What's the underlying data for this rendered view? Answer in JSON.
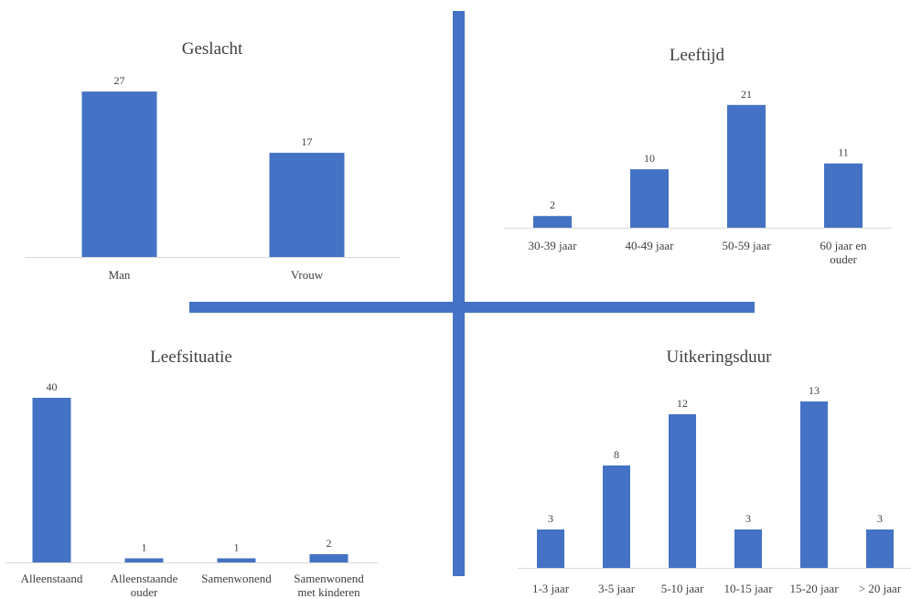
{
  "colors": {
    "bar": "#4472C4",
    "divider": "#4472C4",
    "baseline": "#d9d9d9",
    "text": "#404040"
  },
  "chart_data": [
    {
      "type": "bar",
      "title": "Geslacht",
      "categories": [
        "Man",
        "Vrouw"
      ],
      "values": [
        27,
        17
      ],
      "ylim": [
        0,
        30
      ],
      "grid": false,
      "legend": "none"
    },
    {
      "type": "bar",
      "title": "Leeftijd",
      "categories": [
        "30-39 jaar",
        "40-49 jaar",
        "50-59 jaar",
        "60 jaar en ouder"
      ],
      "values": [
        2,
        10,
        21,
        11
      ],
      "ylim": [
        0,
        23
      ],
      "grid": false,
      "legend": "none"
    },
    {
      "type": "bar",
      "title": "Leefsituatie",
      "categories": [
        "Alleenstaand",
        "Alleenstaande ouder",
        "Samenwonend",
        "Samenwonend met kinderen"
      ],
      "values": [
        40,
        1,
        1,
        2
      ],
      "ylim": [
        0,
        42
      ],
      "grid": false,
      "legend": "none"
    },
    {
      "type": "bar",
      "title": "Uitkeringsduur",
      "categories": [
        "1-3 jaar",
        "3-5 jaar",
        "5-10 jaar",
        "10-15 jaar",
        "15-20 jaar",
        "> 20 jaar"
      ],
      "values": [
        3,
        8,
        12,
        3,
        13,
        3
      ],
      "ylim": [
        0,
        14
      ],
      "grid": false,
      "legend": "none"
    }
  ]
}
